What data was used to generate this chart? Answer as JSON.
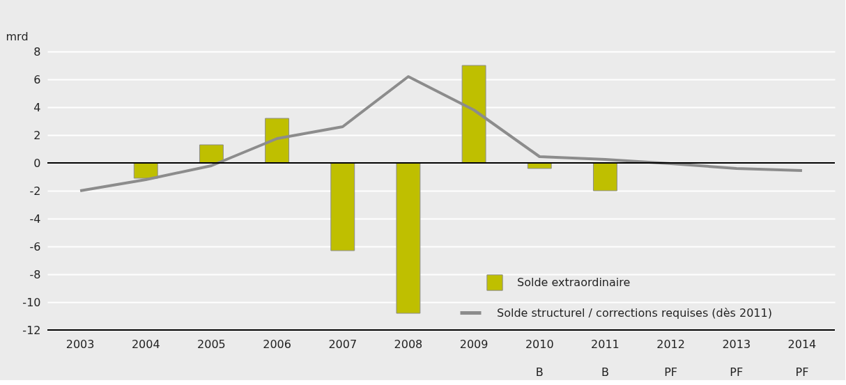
{
  "chart_data": {
    "type": "bar",
    "ylabel": "mrd",
    "categories": [
      "2003",
      "2004",
      "2005",
      "2006",
      "2007",
      "2008",
      "2009",
      "2010\nB",
      "2011\nB",
      "2012\nPF",
      "2013\nPF",
      "2014\nPF"
    ],
    "series": [
      {
        "name": "Solde extraordinaire",
        "color": "#bfbf00",
        "values": [
          null,
          -1.1,
          1.3,
          3.2,
          -6.3,
          -10.8,
          7.0,
          -0.4,
          -2.0,
          null,
          null,
          null
        ]
      },
      {
        "name": "Solde structurel / corrections requises (dès 2011)",
        "type": "line",
        "color": "#8c8c8c",
        "values": [
          -2.0,
          -1.2,
          -0.2,
          1.75,
          2.6,
          6.2,
          3.8,
          0.45,
          0.25,
          -0.05,
          -0.4,
          -0.55
        ]
      }
    ],
    "ylim": [
      -12,
      8
    ],
    "yticks": [
      -12,
      -10,
      -8,
      -6,
      -4,
      -2,
      0,
      2,
      4,
      6,
      8
    ],
    "grid": "y",
    "legend": "bottom right"
  }
}
